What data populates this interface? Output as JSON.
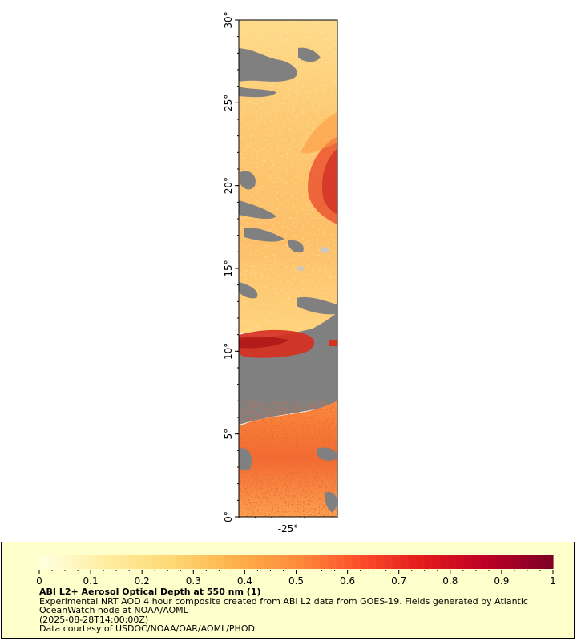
{
  "map": {
    "lat_ticks": [
      {
        "value": 0,
        "label": "0°"
      },
      {
        "value": 5,
        "label": "5°"
      },
      {
        "value": 10,
        "label": "10°"
      },
      {
        "value": 15,
        "label": "15°"
      },
      {
        "value": 20,
        "label": "20°"
      },
      {
        "value": 25,
        "label": "25°"
      },
      {
        "value": 30,
        "label": "30°"
      }
    ],
    "lon_ticks": [
      {
        "value": -25,
        "label": "-25°"
      }
    ],
    "lat_range": [
      0,
      30
    ],
    "lon_range": [
      -28,
      -22
    ],
    "no_data_color": "#808080",
    "frame_color": "#000000"
  },
  "legend": {
    "title": "ABI L2+ Aerosol Optical Depth at 550 nm (1)",
    "description": "Experimental NRT AOD 4 hour composite created from ABI L2 data from GOES-19. Fields generated by Atlantic OceanWatch node at NOAA/AOML",
    "timestamp": "(2025-08-28T14:00:00Z)",
    "credit": "Data courtesy of USDOC/NOAA/OAR/AOML/PHOD",
    "tick_labels": [
      "0",
      "0.1",
      "0.2",
      "0.3",
      "0.4",
      "0.5",
      "0.6",
      "0.7",
      "0.8",
      "0.9",
      "1"
    ],
    "range": [
      0,
      1
    ],
    "background_color": "#ffffcc",
    "colormap": [
      "#ffffe0",
      "#ffeda0",
      "#fed976",
      "#feb24c",
      "#fd8d3c",
      "#fc4e2a",
      "#e31a1c",
      "#bd0026",
      "#800026"
    ]
  }
}
